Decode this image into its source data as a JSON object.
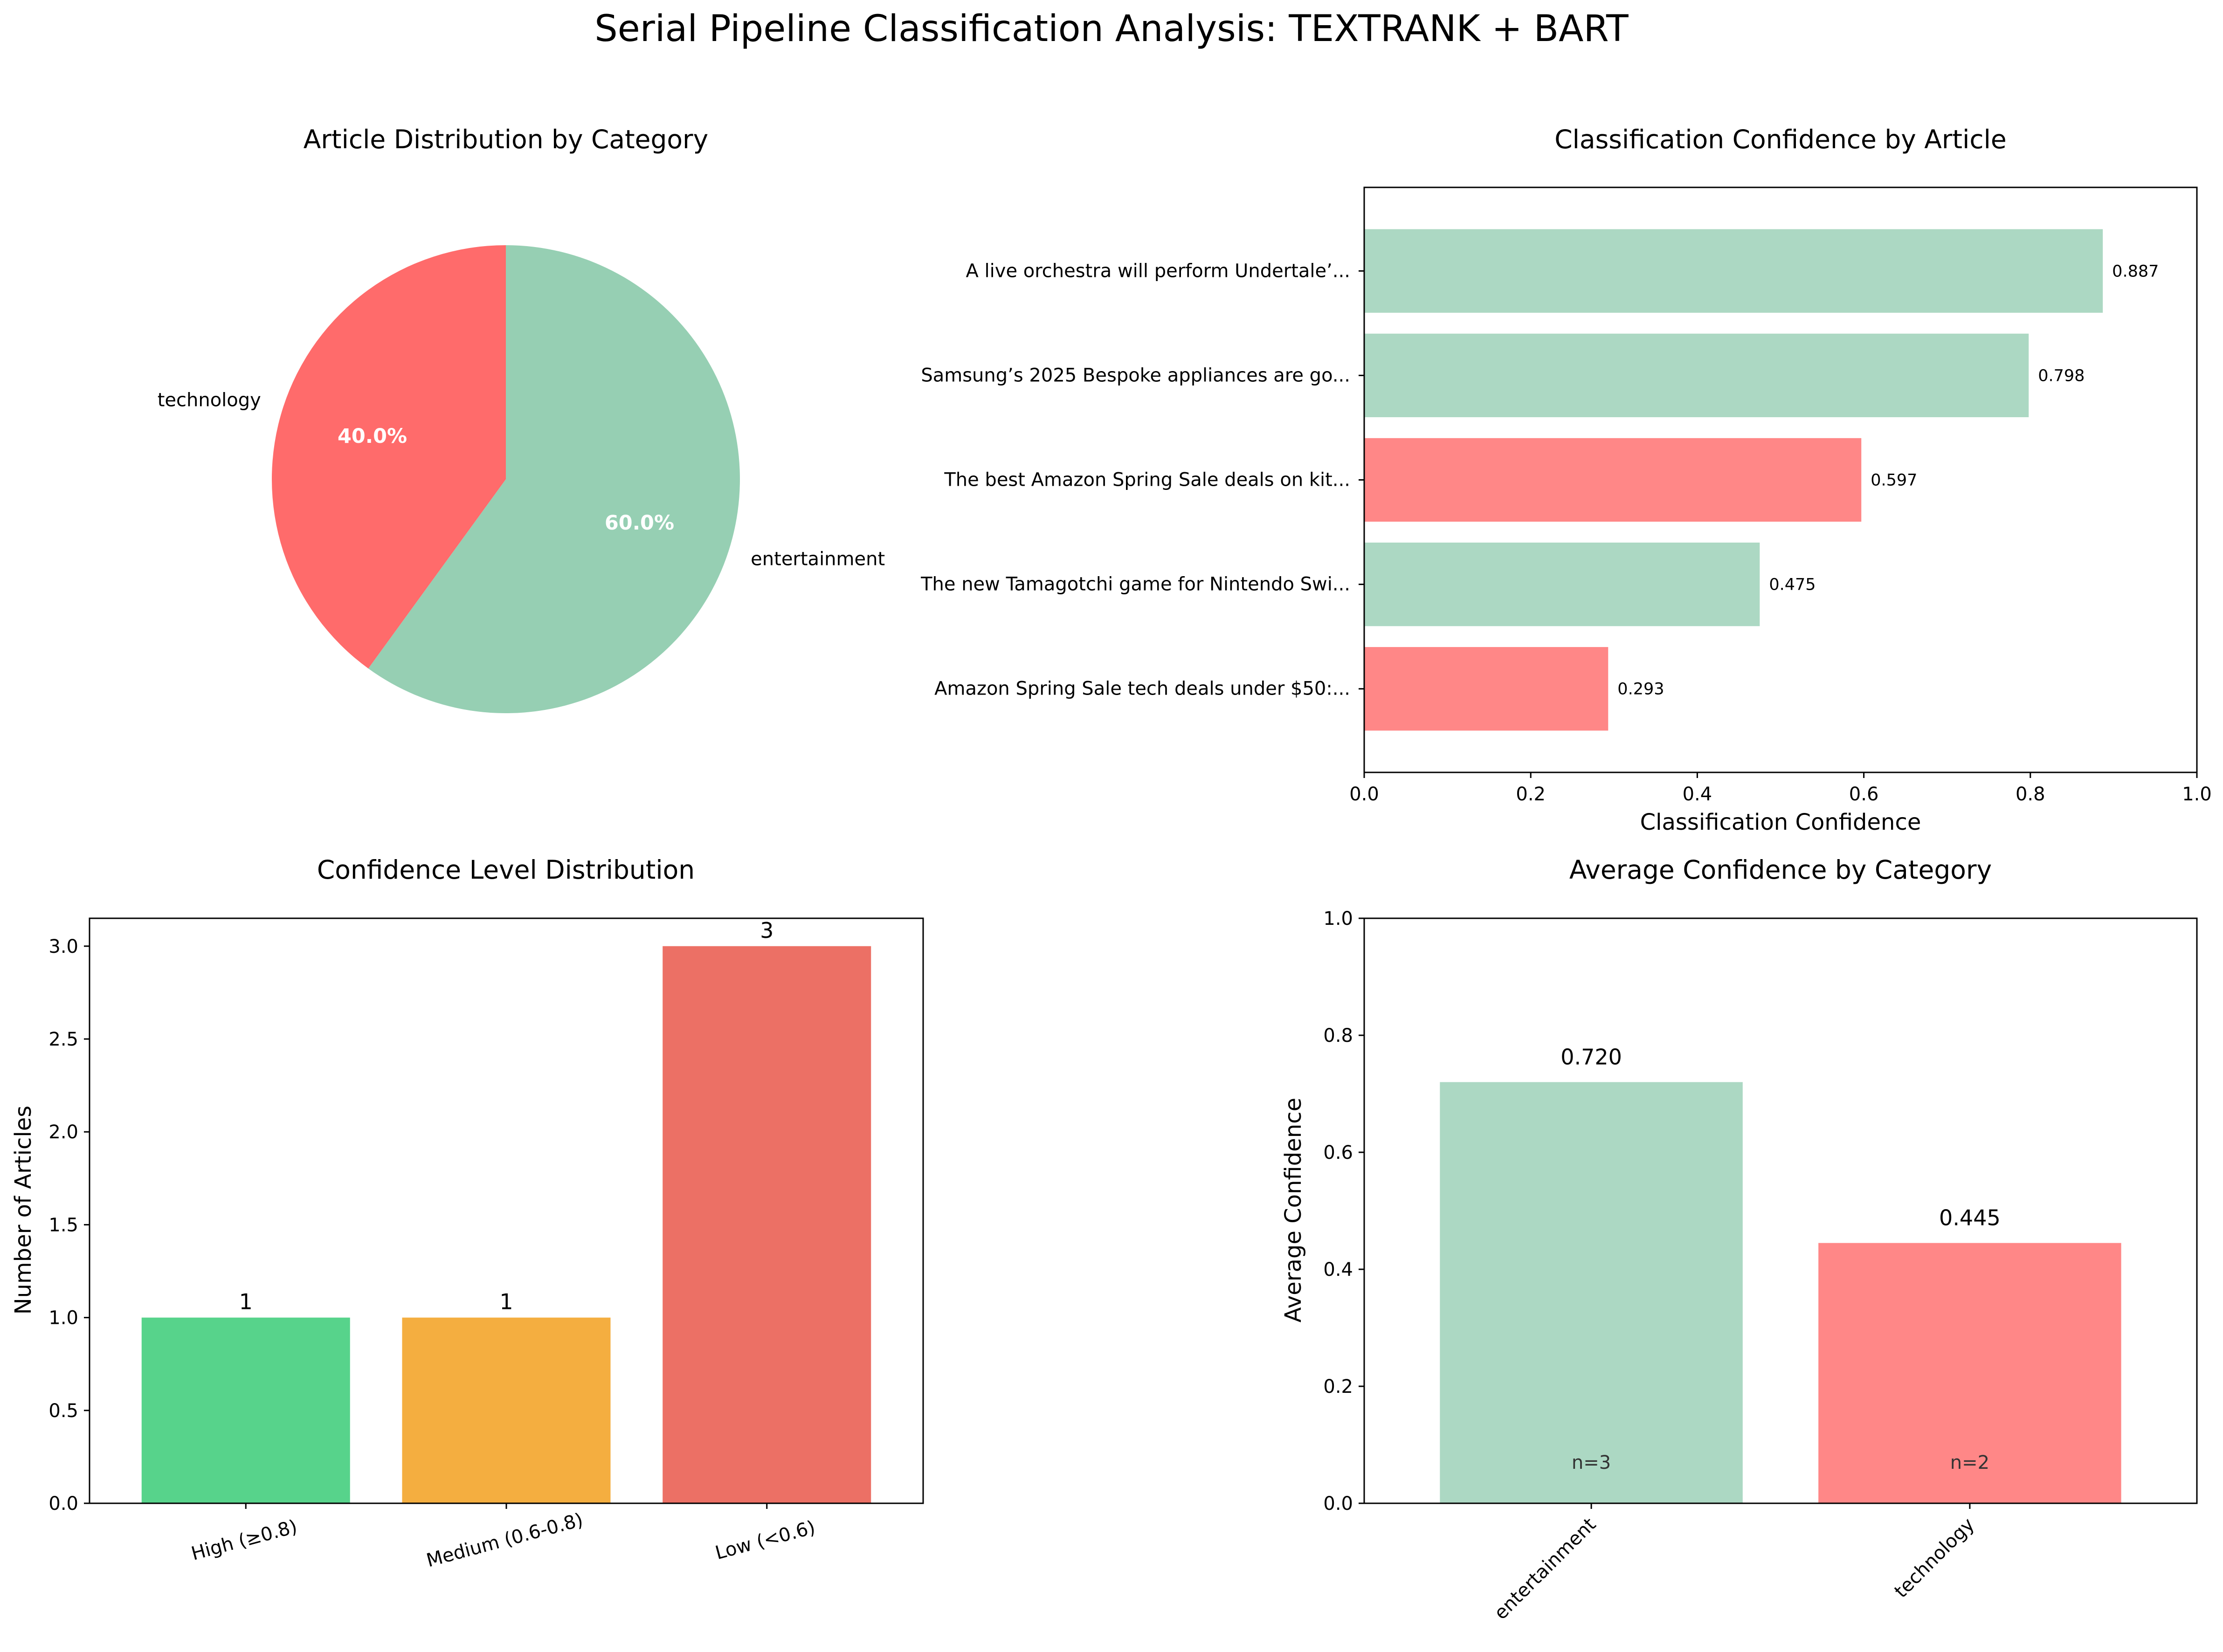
{
  "figure": {
    "title": "Serial Pipeline Classification Analysis: TEXTRANK + BART"
  },
  "chart_data": [
    {
      "type": "pie",
      "title": "Article Distribution by Category",
      "labels": [
        "entertainment",
        "technology"
      ],
      "values": [
        60.0,
        40.0
      ],
      "autopct": [
        "60.0%",
        "40.0%"
      ],
      "colors": [
        "#96cfb3",
        "#ff6b6b"
      ],
      "start_angle_deg": 90,
      "counterclockwise": false
    },
    {
      "type": "bar",
      "orientation": "horizontal",
      "title": "Classification Confidence by Article",
      "xlabel": "Classification Confidence",
      "ylabel": "",
      "xlim": [
        0,
        1.0
      ],
      "xticks": [
        "0.0",
        "0.2",
        "0.4",
        "0.6",
        "0.8",
        "1.0"
      ],
      "categories": [
        "A live orchestra will perform Undertale’...",
        "Samsung’s 2025 Bespoke appliances are go...",
        "The best Amazon Spring Sale deals on kit...",
        "The new Tamagotchi game for Nintendo Swi...",
        "Amazon Spring Sale tech deals under $50:..."
      ],
      "values": [
        0.887,
        0.798,
        0.597,
        0.475,
        0.293
      ],
      "value_labels": [
        "0.887",
        "0.798",
        "0.597",
        "0.475",
        "0.293"
      ],
      "bar_colors": [
        "#acd8c3",
        "#acd8c3",
        "#ff8787",
        "#acd8c3",
        "#ff8787"
      ]
    },
    {
      "type": "bar",
      "title": "Confidence Level Distribution",
      "xlabel": "",
      "ylabel": "Number of Articles",
      "ylim": [
        0,
        3.15
      ],
      "yticks": [
        "0.0",
        "0.5",
        "1.0",
        "1.5",
        "2.0",
        "2.5",
        "3.0"
      ],
      "categories": [
        "High (≥0.8)",
        "Medium (0.6-0.8)",
        "Low (<0.6)"
      ],
      "values": [
        1,
        1,
        3
      ],
      "value_labels": [
        "1",
        "1",
        "3"
      ],
      "bar_colors": [
        "#57d38b",
        "#f4ae40",
        "#ec7065"
      ]
    },
    {
      "type": "bar",
      "title": "Average Confidence by Category",
      "xlabel": "",
      "ylabel": "Average Confidence",
      "ylim": [
        0,
        1.0
      ],
      "yticks": [
        "0.0",
        "0.2",
        "0.4",
        "0.6",
        "0.8",
        "1.0"
      ],
      "categories": [
        "entertainment",
        "technology"
      ],
      "values": [
        0.72,
        0.445
      ],
      "value_labels": [
        "0.720",
        "0.445"
      ],
      "counts": [
        "n=3",
        "n=2"
      ],
      "bar_colors": [
        "#acd8c3",
        "#ff8787"
      ]
    }
  ]
}
